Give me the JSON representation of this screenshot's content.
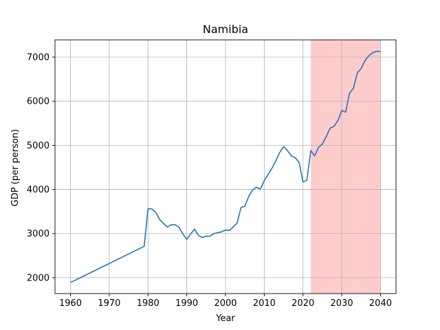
{
  "chart_data": {
    "type": "line",
    "title": "Namibia",
    "xlabel": "Year",
    "ylabel": "GDP (per person)",
    "xlim": [
      1956,
      2044
    ],
    "ylim": [
      1640,
      7390
    ],
    "x_ticks": [
      1960,
      1970,
      1980,
      1990,
      2000,
      2010,
      2020,
      2030,
      2040
    ],
    "y_ticks": [
      2000,
      3000,
      4000,
      5000,
      6000,
      7000
    ],
    "grid": true,
    "legend": "none",
    "highlight": {
      "x_start": 2022,
      "x_end": 2040,
      "color": "#ffcccc"
    },
    "series": [
      {
        "color": "#1f77b4",
        "x": [
          1960,
          1979,
          1980,
          1981,
          1982,
          1983,
          1984,
          1985,
          1986,
          1987,
          1988,
          1989,
          1990,
          1991,
          1992,
          1993,
          1994,
          1995,
          1996,
          1997,
          1998,
          1999,
          2000,
          2001,
          2002,
          2003,
          2004,
          2005,
          2006,
          2007,
          2008,
          2009,
          2010,
          2011,
          2012,
          2013,
          2014,
          2015,
          2016,
          2017,
          2018,
          2019,
          2020,
          2021,
          2022,
          2023,
          2024,
          2025,
          2026,
          2027,
          2028,
          2029,
          2030,
          2031,
          2032,
          2033,
          2034,
          2035,
          2036,
          2037,
          2038,
          2039,
          2040
        ],
        "values": [
          1890,
          2710,
          3560,
          3560,
          3480,
          3320,
          3230,
          3150,
          3200,
          3200,
          3140,
          2990,
          2870,
          2990,
          3100,
          2960,
          2910,
          2940,
          2940,
          3000,
          3020,
          3040,
          3080,
          3070,
          3150,
          3240,
          3590,
          3620,
          3840,
          3990,
          4050,
          4010,
          4200,
          4340,
          4480,
          4650,
          4840,
          4970,
          4880,
          4760,
          4720,
          4610,
          4170,
          4210,
          4880,
          4760,
          4950,
          5030,
          5200,
          5390,
          5430,
          5560,
          5790,
          5750,
          6180,
          6290,
          6640,
          6740,
          6920,
          7030,
          7100,
          7130,
          7130
        ]
      }
    ]
  }
}
